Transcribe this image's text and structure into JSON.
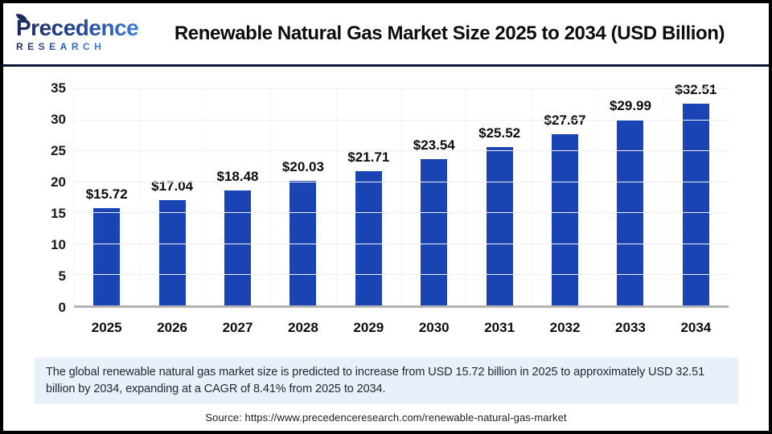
{
  "header": {
    "logo_line1": "Precedence",
    "logo_line2": "RESEARCH",
    "title": "Renewable Natural Gas Market Size 2025 to 2034 (USD Billion)"
  },
  "chart_data": {
    "type": "bar",
    "title": "Renewable Natural Gas Market Size 2025 to 2034 (USD Billion)",
    "categories": [
      "2025",
      "2026",
      "2027",
      "2028",
      "2029",
      "2030",
      "2031",
      "2032",
      "2033",
      "2034"
    ],
    "values": [
      15.72,
      17.04,
      18.48,
      20.03,
      21.71,
      23.54,
      25.52,
      27.67,
      29.99,
      32.51
    ],
    "value_prefix": "$",
    "unit": "USD Billion",
    "xlabel": "",
    "ylabel": "",
    "ylim": [
      0,
      35
    ],
    "y_ticks": [
      0,
      5,
      10,
      15,
      20,
      25,
      30,
      35
    ],
    "grid": "horizontal",
    "legend": "none"
  },
  "summary": {
    "text": "The global renewable natural gas market size is predicted to increase from USD 15.72 billion in 2025 to approximately USD 32.51 billion by 2034, expanding at a CAGR of 8.41% from 2025 to 2034."
  },
  "source": {
    "text": "Source: https://www.precedenceresearch.com/renewable-natural-gas-market"
  },
  "colors": {
    "bar": "#1a43b3",
    "header_rule": "#0e1638",
    "summary_bg": "#e8f0fa",
    "logo_navy": "#1b2a5e",
    "logo_blue": "#3b7dd8",
    "gridline": "#efefef",
    "axis_line": "#b3b3b3"
  }
}
